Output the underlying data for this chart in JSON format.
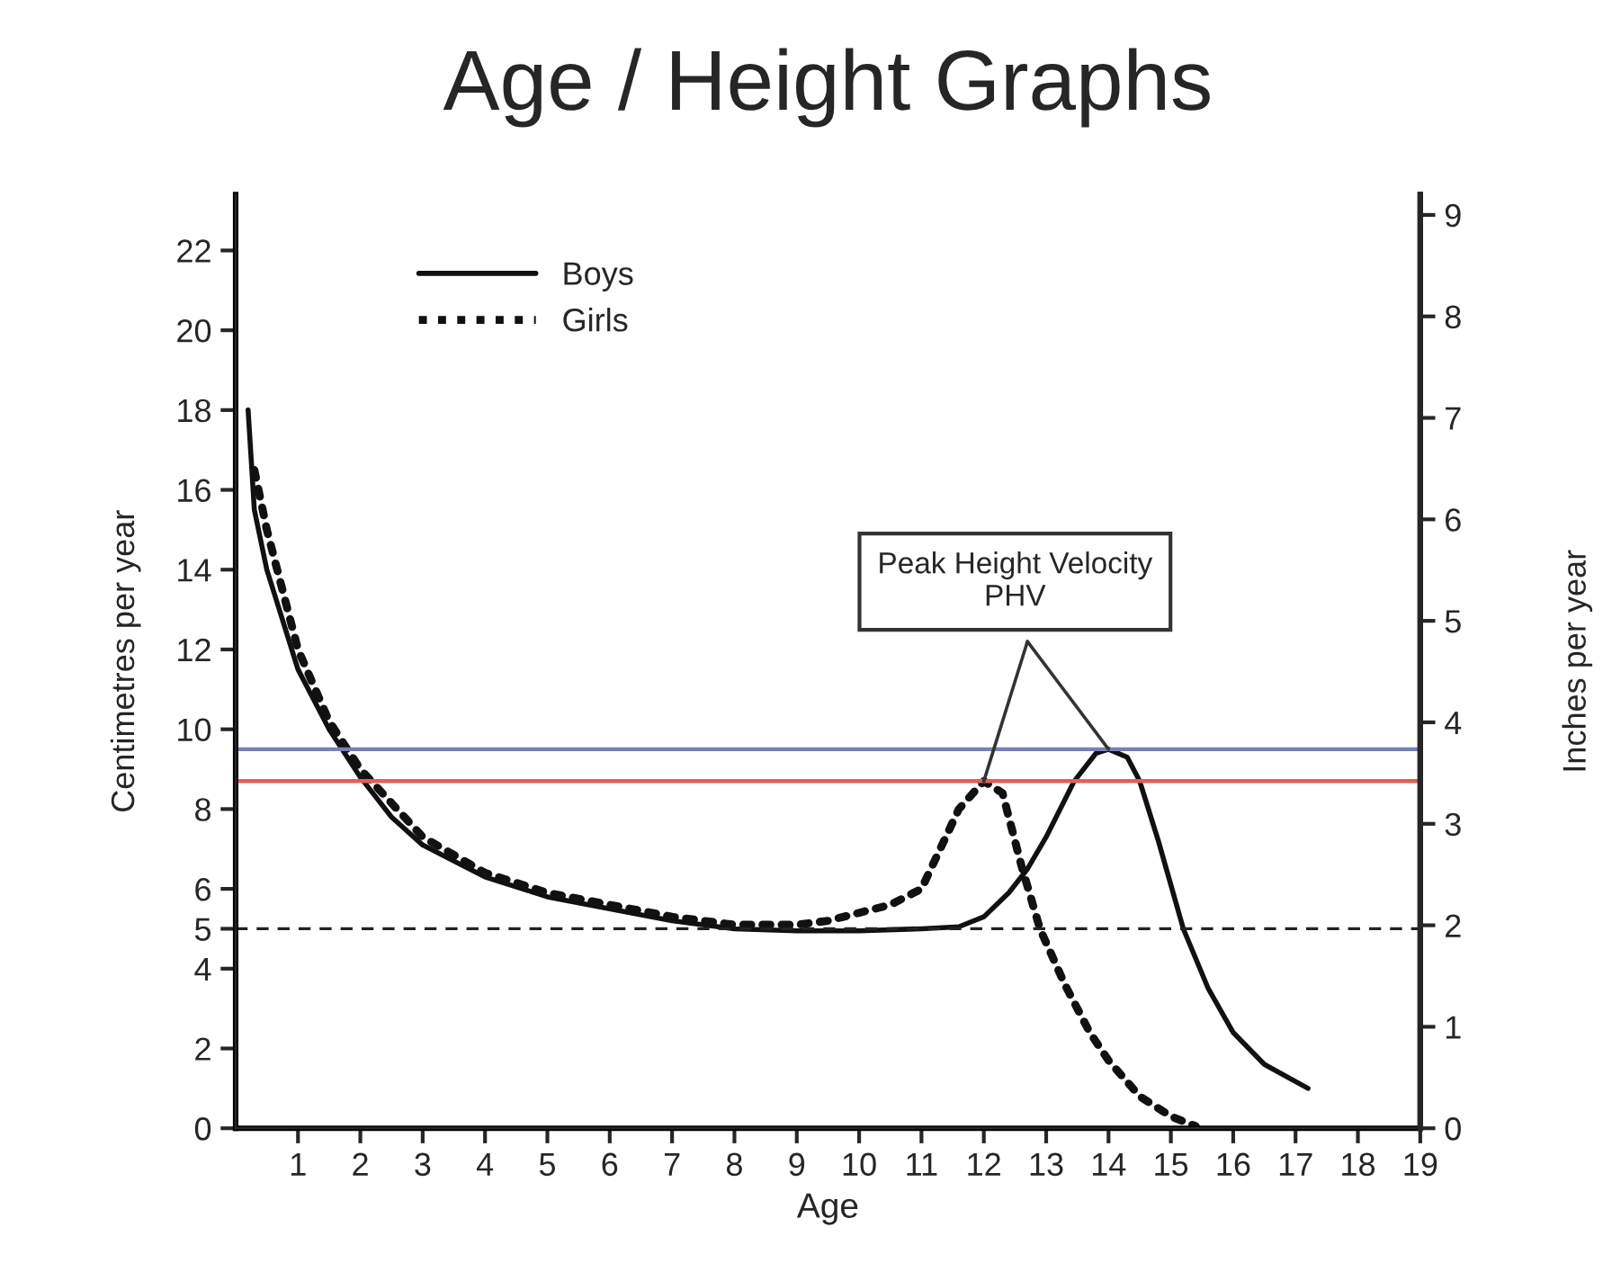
{
  "chart_data": {
    "type": "line",
    "title": "Age / Height Graphs",
    "xlabel": "Age",
    "ylabel": "Centimetres per year",
    "y2label": "Inches per year",
    "xlim": [
      0,
      19
    ],
    "xticks": [
      1,
      2,
      3,
      4,
      5,
      6,
      7,
      8,
      9,
      10,
      11,
      12,
      13,
      14,
      15,
      16,
      17,
      18,
      19
    ],
    "ylim": [
      0,
      23.4
    ],
    "yticks": [
      0,
      2,
      4,
      5,
      6,
      8,
      10,
      12,
      14,
      16,
      18,
      20,
      22
    ],
    "y2lim": [
      0,
      9.2
    ],
    "y2ticks": [
      0,
      1,
      2,
      3,
      4,
      5,
      6,
      7,
      8,
      9
    ],
    "series": [
      {
        "name": "Boys",
        "color": "#111111",
        "line_style": "solid",
        "x": [
          0.2,
          0.3,
          0.5,
          1,
          1.5,
          2,
          2.5,
          3,
          4,
          5,
          6,
          7,
          8,
          9,
          10,
          11,
          11.6,
          12,
          12.4,
          12.7,
          13,
          13.45,
          13.8,
          14,
          14.3,
          14.5,
          14.8,
          15.2,
          15.6,
          16,
          16.5,
          17.2
        ],
        "values": [
          18,
          15.5,
          14,
          11.5,
          10,
          8.8,
          7.8,
          7.1,
          6.3,
          5.8,
          5.5,
          5.2,
          5.0,
          4.95,
          4.95,
          5.0,
          5.05,
          5.3,
          5.9,
          6.5,
          7.3,
          8.7,
          9.4,
          9.5,
          9.3,
          8.7,
          7.2,
          5.0,
          3.5,
          2.4,
          1.6,
          1.0
        ]
      },
      {
        "name": "Girls",
        "color": "#111111",
        "line_style": "dotted",
        "x": [
          0.3,
          0.5,
          1,
          1.5,
          2,
          3,
          4,
          5,
          6,
          7,
          8,
          9,
          9.5,
          10,
          10.5,
          11,
          11.3,
          11.6,
          12,
          12.3,
          12.6,
          12.9,
          13.3,
          13.7,
          14,
          14.5,
          15,
          15.4
        ],
        "values": [
          16.5,
          15,
          12,
          10.2,
          9,
          7.3,
          6.4,
          5.9,
          5.6,
          5.3,
          5.1,
          5.1,
          5.2,
          5.4,
          5.6,
          6.0,
          7.0,
          8.0,
          8.7,
          8.4,
          6.6,
          5.0,
          3.6,
          2.4,
          1.7,
          0.8,
          0.3,
          0.05
        ]
      }
    ],
    "ref_lines": [
      {
        "axis": "y",
        "value": 9.5,
        "color": "#7a7fb8",
        "line_style": "solid"
      },
      {
        "axis": "y",
        "value": 8.7,
        "color": "#e0605a",
        "line_style": "solid"
      },
      {
        "axis": "y",
        "value": 5,
        "color": "#222222",
        "line_style": "dashed"
      }
    ],
    "annotations": [
      {
        "text": "Peak Height Velocity\nPHV",
        "x": 12,
        "y": 8.7
      }
    ],
    "legend": "top left",
    "grid": false
  }
}
